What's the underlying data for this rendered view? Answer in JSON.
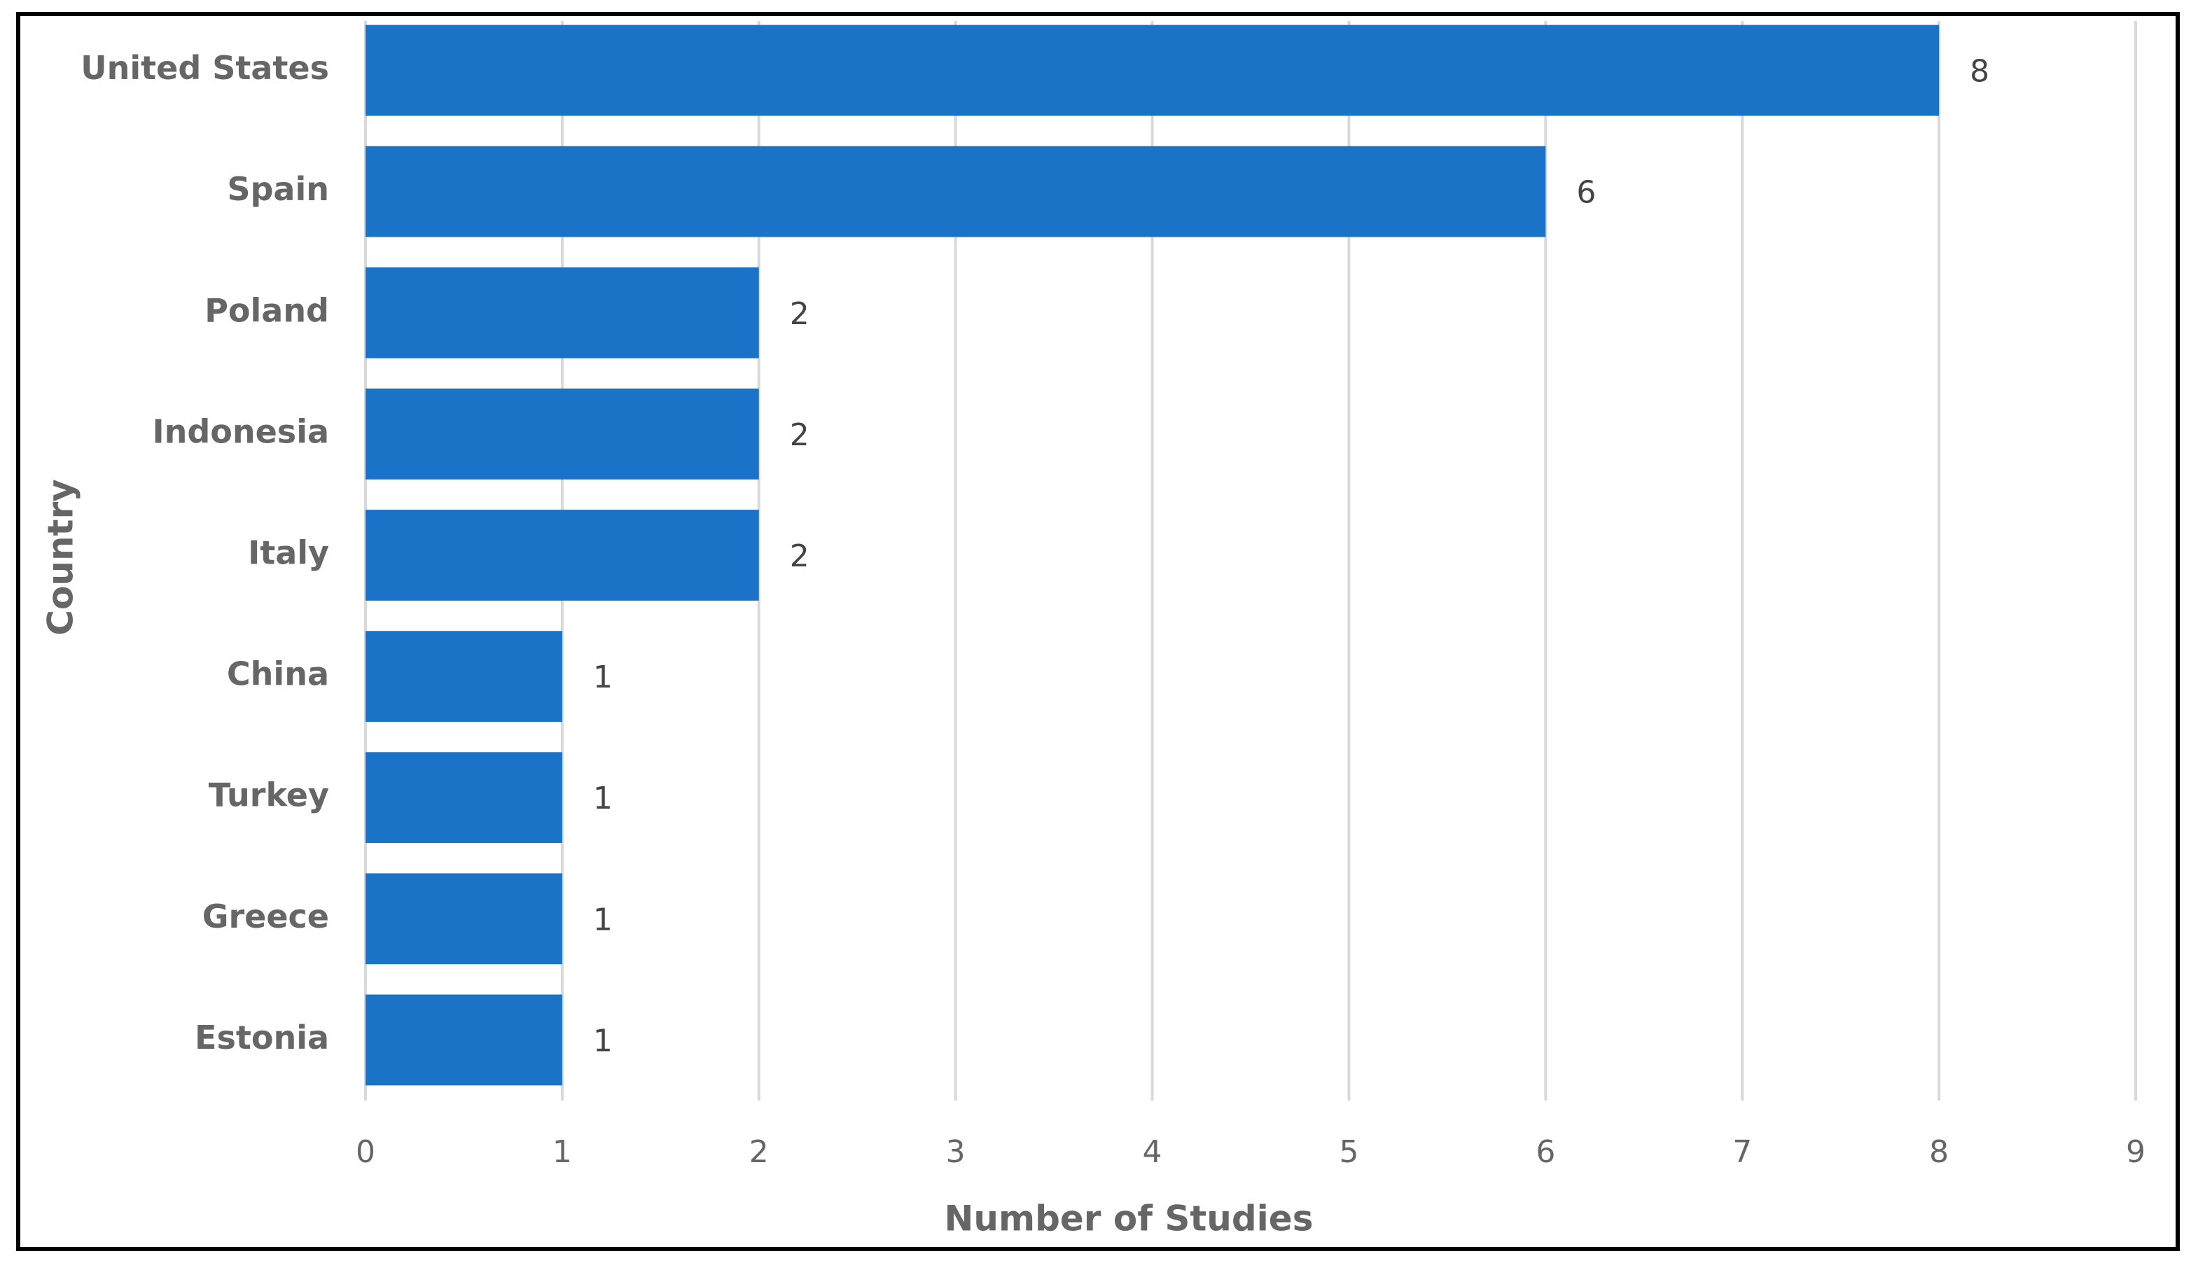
{
  "chart_data": {
    "type": "bar",
    "orientation": "horizontal",
    "x_label": "Number of Studies",
    "y_label": "Country",
    "categories": [
      "United States",
      "Spain",
      "Poland",
      "Indonesia",
      "Italy",
      "China",
      "Turkey",
      "Greece",
      "Estonia"
    ],
    "values": [
      8,
      6,
      2,
      2,
      2,
      1,
      1,
      1,
      1
    ],
    "color": "#1b73c8",
    "xlim": [
      0,
      9
    ],
    "xticks": [
      0,
      1,
      2,
      3,
      4,
      5,
      6,
      7,
      8,
      9
    ],
    "grid": true
  }
}
